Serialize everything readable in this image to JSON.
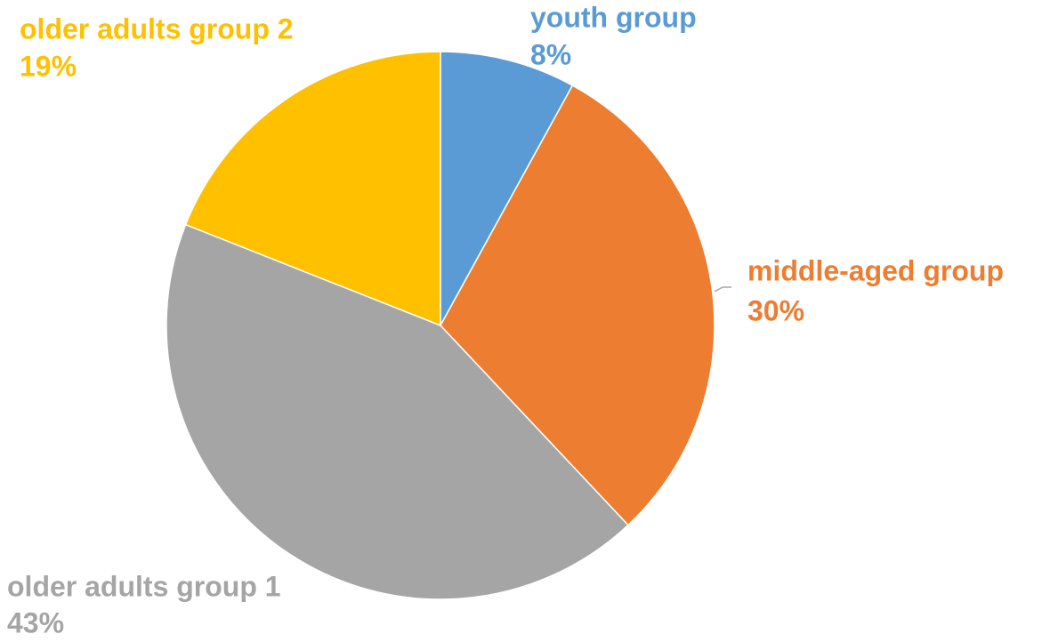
{
  "chart_data": {
    "type": "pie",
    "categories": [
      "youth group",
      "middle-aged group",
      "older adults group 1",
      "older adults group 2"
    ],
    "values": [
      8,
      30,
      43,
      19
    ],
    "value_labels": [
      "8%",
      "30%",
      "43%",
      "19%"
    ],
    "colors": [
      "#5b9bd5",
      "#ed7d31",
      "#a5a5a5",
      "#ffc000"
    ]
  }
}
